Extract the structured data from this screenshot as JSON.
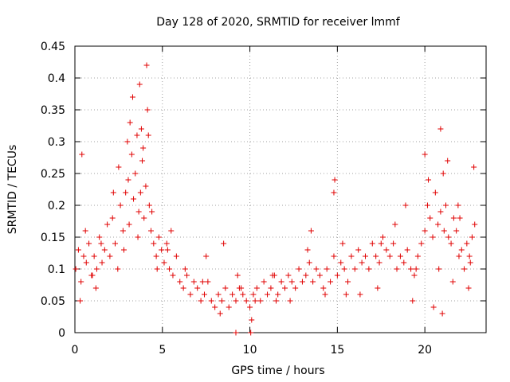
{
  "chart_data": {
    "type": "scatter",
    "title": "Day 128 of 2020, SRMTID for receiver lmmf",
    "xlabel": "GPS time / hours",
    "ylabel": "SRMTID / TECUs",
    "xlim": [
      0,
      23.5
    ],
    "ylim": [
      0,
      0.45
    ],
    "xticks": [
      0,
      5,
      10,
      15,
      20
    ],
    "xtick_labels": [
      "0",
      "5",
      "10",
      "15",
      "20"
    ],
    "yticks": [
      0,
      0.05,
      0.1,
      0.15,
      0.2,
      0.25,
      0.3,
      0.35,
      0.4,
      0.45
    ],
    "ytick_labels": [
      "0",
      "0.05",
      "0.1",
      "0.15",
      "0.2",
      "0.25",
      "0.3",
      "0.35",
      "0.4",
      "0.45"
    ],
    "grid": true,
    "marker": "+",
    "color": "#e00000",
    "series": [
      {
        "name": "SRMTID",
        "x": [
          0.05,
          0.2,
          0.35,
          0.5,
          0.65,
          0.8,
          0.95,
          1.1,
          1.25,
          1.4,
          1.55,
          1.7,
          1.85,
          2.0,
          2.15,
          2.3,
          2.45,
          2.6,
          2.75,
          2.9,
          3.05,
          3.15,
          3.25,
          3.35,
          3.45,
          3.55,
          3.65,
          3.75,
          3.85,
          3.95,
          4.05,
          4.15,
          4.25,
          4.35,
          4.5,
          4.65,
          4.8,
          4.95,
          5.1,
          5.25,
          5.4,
          5.6,
          5.8,
          6.0,
          6.2,
          6.4,
          6.6,
          6.8,
          7.0,
          7.2,
          7.4,
          7.6,
          7.8,
          8.0,
          8.2,
          8.4,
          8.6,
          8.8,
          9.0,
          9.2,
          9.4,
          9.6,
          9.8,
          10.0,
          10.2,
          10.4,
          10.6,
          10.8,
          11.0,
          11.2,
          11.4,
          11.6,
          11.8,
          12.0,
          12.2,
          12.4,
          12.6,
          12.8,
          13.0,
          13.2,
          13.4,
          13.6,
          13.8,
          14.0,
          14.2,
          14.4,
          14.6,
          14.8,
          15.0,
          15.2,
          15.4,
          15.6,
          15.8,
          16.0,
          16.2,
          16.4,
          16.6,
          16.8,
          17.0,
          17.2,
          17.4,
          17.6,
          17.8,
          18.0,
          18.2,
          18.4,
          18.6,
          18.8,
          19.0,
          19.2,
          19.4,
          19.6,
          19.8,
          20.0,
          20.15,
          20.3,
          20.45,
          20.6,
          20.75,
          20.9,
          21.05,
          21.2,
          21.35,
          21.5,
          21.65,
          21.8,
          21.95,
          22.1,
          22.25,
          22.4,
          22.55,
          22.7,
          22.85,
          0.3,
          0.6,
          1.0,
          1.5,
          2.2,
          2.8,
          3.3,
          3.6,
          3.9,
          4.1,
          4.4,
          4.7,
          5.3,
          6.3,
          7.3,
          8.3,
          8.5,
          9.3,
          10.1,
          10.3,
          11.3,
          12.3,
          13.3,
          14.3,
          14.8,
          15.3,
          16.3,
          17.3,
          18.3,
          18.9,
          19.3,
          20.0,
          20.5,
          20.8,
          21.0,
          21.3,
          21.6,
          22.0,
          22.5,
          22.8,
          0.4,
          1.2,
          2.5,
          3.1,
          3.7,
          4.2,
          5.5,
          7.5,
          9.5,
          11.5,
          13.5,
          15.5,
          17.5,
          19.5,
          20.2,
          21.1,
          21.9,
          22.6,
          3.0,
          3.8,
          14.85,
          20.9,
          9.2,
          10.05
        ],
        "y": [
          0.1,
          0.13,
          0.08,
          0.12,
          0.11,
          0.14,
          0.09,
          0.12,
          0.1,
          0.15,
          0.11,
          0.13,
          0.17,
          0.12,
          0.18,
          0.14,
          0.1,
          0.2,
          0.16,
          0.22,
          0.24,
          0.33,
          0.28,
          0.21,
          0.25,
          0.31,
          0.19,
          0.22,
          0.27,
          0.18,
          0.23,
          0.35,
          0.2,
          0.16,
          0.14,
          0.12,
          0.15,
          0.13,
          0.11,
          0.14,
          0.1,
          0.09,
          0.12,
          0.08,
          0.07,
          0.09,
          0.06,
          0.08,
          0.07,
          0.05,
          0.06,
          0.08,
          0.05,
          0.04,
          0.06,
          0.05,
          0.07,
          0.04,
          0.06,
          0.05,
          0.07,
          0.06,
          0.05,
          0.04,
          0.06,
          0.07,
          0.05,
          0.08,
          0.06,
          0.07,
          0.09,
          0.06,
          0.08,
          0.07,
          0.09,
          0.08,
          0.07,
          0.1,
          0.08,
          0.09,
          0.11,
          0.08,
          0.1,
          0.09,
          0.07,
          0.1,
          0.08,
          0.12,
          0.09,
          0.11,
          0.1,
          0.08,
          0.12,
          0.1,
          0.13,
          0.11,
          0.12,
          0.1,
          0.14,
          0.12,
          0.11,
          0.15,
          0.13,
          0.12,
          0.14,
          0.1,
          0.12,
          0.11,
          0.13,
          0.1,
          0.09,
          0.12,
          0.14,
          0.16,
          0.2,
          0.18,
          0.15,
          0.22,
          0.17,
          0.19,
          0.25,
          0.2,
          0.15,
          0.14,
          0.18,
          0.16,
          0.12,
          0.13,
          0.1,
          0.14,
          0.12,
          0.15,
          0.17,
          0.05,
          0.16,
          0.09,
          0.14,
          0.22,
          0.13,
          0.37,
          0.15,
          0.29,
          0.42,
          0.19,
          0.1,
          0.13,
          0.1,
          0.08,
          0.03,
          0.14,
          0.09,
          0.02,
          0.05,
          0.09,
          0.05,
          0.13,
          0.06,
          0.22,
          0.14,
          0.06,
          0.07,
          0.17,
          0.2,
          0.05,
          0.28,
          0.04,
          0.1,
          0.03,
          0.27,
          0.08,
          0.18,
          0.07,
          0.26,
          0.28,
          0.07,
          0.26,
          0.17,
          0.39,
          0.31,
          0.16,
          0.12,
          0.07,
          0.05,
          0.16,
          0.06,
          0.14,
          0.1,
          0.24,
          0.16,
          0.2,
          0.11,
          0.3,
          0.32,
          0.24,
          0.32,
          0.0,
          0.0
        ]
      }
    ]
  }
}
